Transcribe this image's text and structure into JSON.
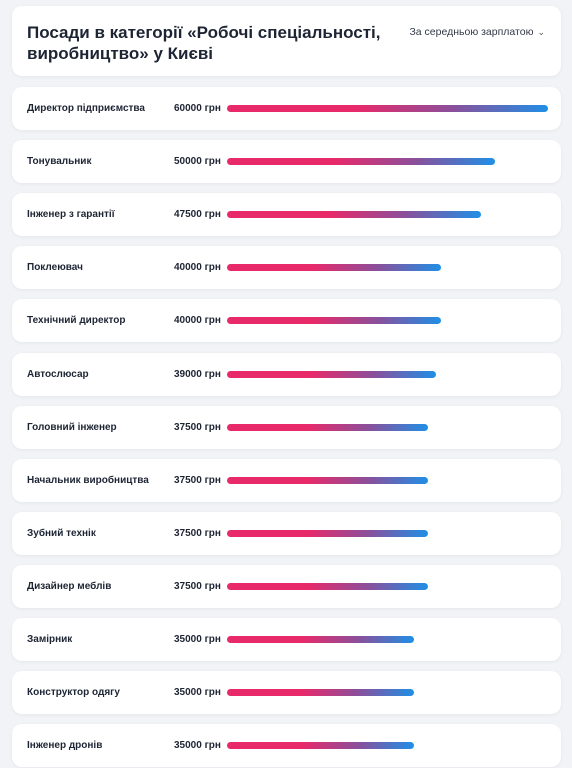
{
  "header": {
    "title": "Посади в категорії «Робочі спеціальності, виробництво» у Києві",
    "sort_label": "За середньою зарплатою",
    "sort_icon": "chevron-down-icon"
  },
  "colors": {
    "bar_start": "#e8296a",
    "bar_end": "#1f8fe6",
    "background": "#f1f3f6",
    "card": "#ffffff"
  },
  "max_salary": 60000,
  "positions": [
    {
      "title": "Директор підприємства",
      "salary_text": "60000 грн",
      "salary": 60000
    },
    {
      "title": "Тонувальник",
      "salary_text": "50000 грн",
      "salary": 50000
    },
    {
      "title": "Інженер з гарантії",
      "salary_text": "47500 грн",
      "salary": 47500
    },
    {
      "title": "Поклеювач",
      "salary_text": "40000 грн",
      "salary": 40000
    },
    {
      "title": "Технічний директор",
      "salary_text": "40000 грн",
      "salary": 40000
    },
    {
      "title": "Автослюсар",
      "salary_text": "39000 грн",
      "salary": 39000
    },
    {
      "title": "Головний інженер",
      "salary_text": "37500 грн",
      "salary": 37500
    },
    {
      "title": "Начальник виробництва",
      "salary_text": "37500 грн",
      "salary": 37500
    },
    {
      "title": "Зубний технік",
      "salary_text": "37500 грн",
      "salary": 37500
    },
    {
      "title": "Дизайнер меблів",
      "salary_text": "37500 грн",
      "salary": 37500
    },
    {
      "title": "Замірник",
      "salary_text": "35000 грн",
      "salary": 35000
    },
    {
      "title": "Конструктор одягу",
      "salary_text": "35000 грн",
      "salary": 35000
    },
    {
      "title": "Інженер дронів",
      "salary_text": "35000 грн",
      "salary": 35000
    }
  ]
}
